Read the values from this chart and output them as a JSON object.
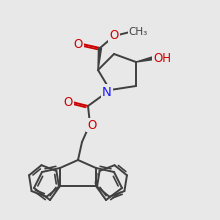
{
  "bg_color": "#e8e8e8",
  "bond_color": "#404040",
  "bond_width": 1.4,
  "atom_colors": {
    "O": "#cc0000",
    "N": "#1a1aff",
    "C": "#404040",
    "H": "#404040"
  },
  "font_size": 7.5
}
